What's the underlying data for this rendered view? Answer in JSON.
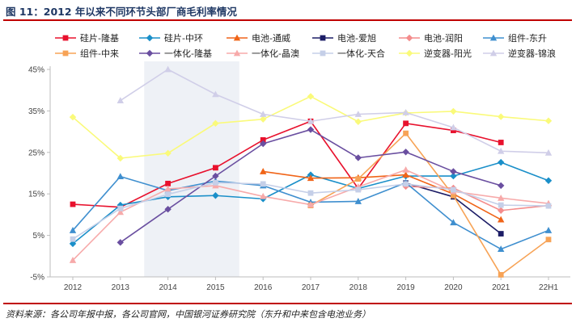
{
  "title": "图 11：2012 年以来不同环节头部厂商毛利率情况",
  "source": "资料来源：各公司年报中报，各公司官网，中国银河证券研究院（东升和中来包含电池业务）",
  "chart_data": {
    "type": "line",
    "title": "",
    "xlabel": "",
    "ylabel": "",
    "x": [
      "2012",
      "2013",
      "2014",
      "2015",
      "2016",
      "2017",
      "2018",
      "2019",
      "2020",
      "2021",
      "22H1"
    ],
    "ylim": [
      -5,
      45
    ],
    "yticks": [
      -5,
      5,
      15,
      25,
      35,
      45
    ],
    "ytick_labels": [
      "-5%",
      "5%",
      "15%",
      "25%",
      "35%",
      "45%"
    ],
    "shaded_x": [
      "2014",
      "2015"
    ],
    "grid": false,
    "legend": "top",
    "series": [
      {
        "name": "硅片-隆基",
        "color": "#e8112d",
        "marker": "square",
        "values": [
          12.5,
          11.8,
          17.5,
          21.3,
          28.0,
          32.5,
          16.3,
          32.0,
          30.3,
          27.4,
          null
        ]
      },
      {
        "name": "硅片-中环",
        "color": "#1a8fc9",
        "marker": "diamond",
        "values": [
          3.0,
          12.3,
          14.3,
          14.6,
          13.8,
          19.6,
          16.3,
          19.3,
          19.3,
          22.6,
          18.2
        ]
      },
      {
        "name": "电池-通威",
        "color": "#f06418",
        "marker": "triangle",
        "values": [
          null,
          null,
          null,
          null,
          20.4,
          18.8,
          18.9,
          19.6,
          15.0,
          8.8,
          null
        ]
      },
      {
        "name": "电池-爱旭",
        "color": "#1c1d66",
        "marker": "square",
        "values": [
          null,
          null,
          null,
          null,
          null,
          null,
          null,
          17.6,
          14.3,
          5.4,
          null
        ]
      },
      {
        "name": "电池-润阳",
        "color": "#f48c8c",
        "marker": "diamond",
        "values": [
          null,
          null,
          null,
          null,
          null,
          null,
          null,
          16.8,
          16.4,
          11.0,
          12.2
        ]
      },
      {
        "name": "组件-东升",
        "color": "#3f8fcf",
        "marker": "triangle",
        "values": [
          6.2,
          19.2,
          15.8,
          18.1,
          17.0,
          13.0,
          13.2,
          17.7,
          8.1,
          1.7,
          6.2
        ]
      },
      {
        "name": "组件-中来",
        "color": "#f7a356",
        "marker": "square",
        "values": [
          null,
          null,
          null,
          null,
          null,
          12.2,
          18.6,
          29.6,
          14.6,
          -4.5,
          4.0
        ]
      },
      {
        "name": "一体化-隆基",
        "color": "#6a4fa0",
        "marker": "diamond",
        "values": [
          null,
          3.3,
          11.3,
          19.3,
          27.1,
          30.5,
          23.7,
          25.1,
          20.4,
          17.0,
          null
        ]
      },
      {
        "name": "一体化-晶澳",
        "color": "#f7aaaa",
        "marker": "triangle",
        "values": [
          -1.0,
          10.6,
          16.2,
          17.0,
          14.4,
          12.4,
          16.7,
          20.8,
          15.6,
          14.0,
          12.7
        ]
      },
      {
        "name": "一体化-天合",
        "color": "#c5cfe8",
        "marker": "square",
        "values": [
          4.1,
          11.5,
          14.9,
          17.7,
          17.4,
          15.2,
          16.0,
          17.4,
          16.0,
          12.3,
          12.1
        ]
      },
      {
        "name": "逆变器-阳光",
        "color": "#fafa7a",
        "marker": "diamond",
        "values": [
          33.5,
          23.6,
          24.8,
          32.0,
          33.0,
          38.5,
          32.4,
          34.5,
          34.9,
          33.6,
          32.6
        ]
      },
      {
        "name": "逆变器-锦浪",
        "color": "#d0cee8",
        "marker": "triangle",
        "values": [
          null,
          37.5,
          45.0,
          39.0,
          34.2,
          32.5,
          34.2,
          34.6,
          31.0,
          25.3,
          24.9
        ]
      }
    ]
  }
}
